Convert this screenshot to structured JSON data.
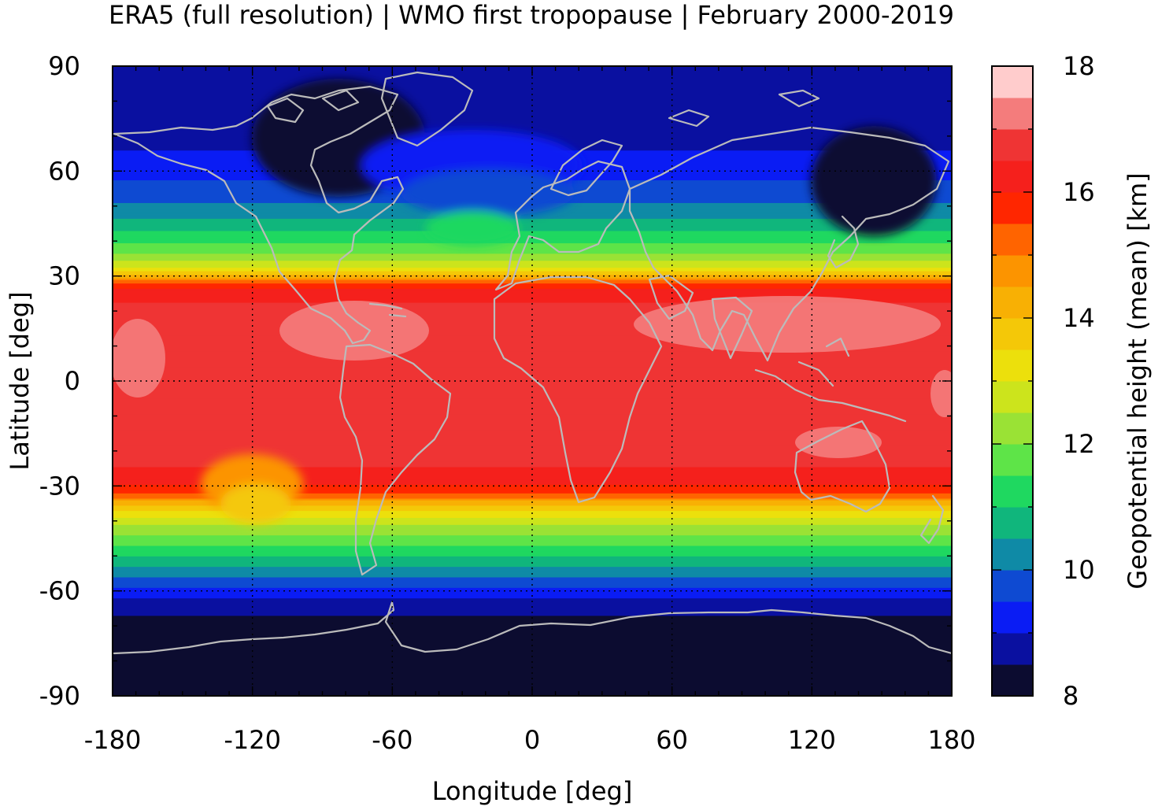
{
  "title": "ERA5 (full resolution) | WMO first tropopause | February 2000-2019",
  "map": {
    "xlabel": "Longitude [deg]",
    "ylabel": "Latitude [deg]",
    "xlim": [
      -180,
      180
    ],
    "ylim": [
      -90,
      90
    ],
    "xticks": [
      -180,
      -120,
      -60,
      0,
      60,
      120,
      180
    ],
    "yticks": [
      -90,
      -60,
      -30,
      0,
      30,
      60,
      90
    ],
    "grid": "dotted",
    "coastlines": true,
    "coastline_color": "#bbbbbb"
  },
  "colorbar": {
    "label": "Geopotential height (mean) [km]",
    "ticks": [
      8,
      10,
      12,
      14,
      16,
      18
    ],
    "range": [
      8,
      18
    ],
    "levels": [
      {
        "from": 8.0,
        "to": 8.5,
        "color": "#0c0c30"
      },
      {
        "from": 8.5,
        "to": 9.0,
        "color": "#0a10a0"
      },
      {
        "from": 9.0,
        "to": 9.5,
        "color": "#0a1cf4"
      },
      {
        "from": 9.5,
        "to": 10.0,
        "color": "#0e4ad2"
      },
      {
        "from": 10.0,
        "to": 10.5,
        "color": "#0f8aa6"
      },
      {
        "from": 10.5,
        "to": 11.0,
        "color": "#10b67c"
      },
      {
        "from": 11.0,
        "to": 11.5,
        "color": "#1fd860"
      },
      {
        "from": 11.5,
        "to": 12.0,
        "color": "#5ee448"
      },
      {
        "from": 12.0,
        "to": 12.5,
        "color": "#9ae235"
      },
      {
        "from": 12.5,
        "to": 13.0,
        "color": "#cce41c"
      },
      {
        "from": 13.0,
        "to": 13.5,
        "color": "#ece00c"
      },
      {
        "from": 13.5,
        "to": 14.0,
        "color": "#f4c808"
      },
      {
        "from": 14.0,
        "to": 14.5,
        "color": "#f8b004"
      },
      {
        "from": 14.5,
        "to": 15.0,
        "color": "#fc9400"
      },
      {
        "from": 15.0,
        "to": 15.5,
        "color": "#ff6400"
      },
      {
        "from": 15.5,
        "to": 16.0,
        "color": "#ff2600"
      },
      {
        "from": 16.0,
        "to": 16.5,
        "color": "#f5201c"
      },
      {
        "from": 16.5,
        "to": 17.0,
        "color": "#ef3434"
      },
      {
        "from": 17.0,
        "to": 17.5,
        "color": "#f47c7c"
      },
      {
        "from": 17.5,
        "to": 18.0,
        "color": "#ffcccc"
      }
    ]
  }
}
